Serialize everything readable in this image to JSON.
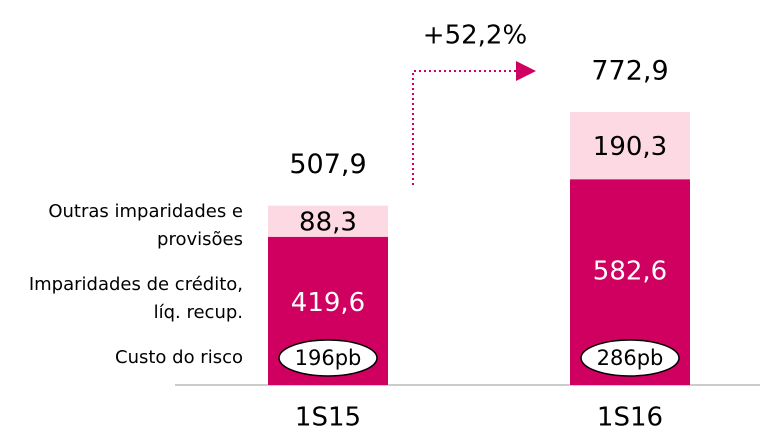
{
  "chart_data": {
    "type": "stacked_bar",
    "categories": [
      "1S15",
      "1S16"
    ],
    "series": [
      {
        "name": "Imparidades de crédito, líq. recup.",
        "color": "#cf0060",
        "values": [
          419.6,
          582.6
        ],
        "value_labels": [
          "419,6",
          "582,6"
        ]
      },
      {
        "name": "Outras imparidades e provisões",
        "color": "#fcd9e3",
        "values": [
          88.3,
          190.3
        ],
        "value_labels": [
          "88,3",
          "190,3"
        ]
      }
    ],
    "totals": [
      507.9,
      772.9
    ],
    "total_labels": [
      "507,9",
      "772,9"
    ],
    "growth": {
      "value": 52.2,
      "label": "+52,2%"
    },
    "cost_of_risk": {
      "label": "Custo do risco",
      "values": [
        196,
        286
      ],
      "value_labels": [
        "196pb",
        "286pb"
      ]
    }
  }
}
